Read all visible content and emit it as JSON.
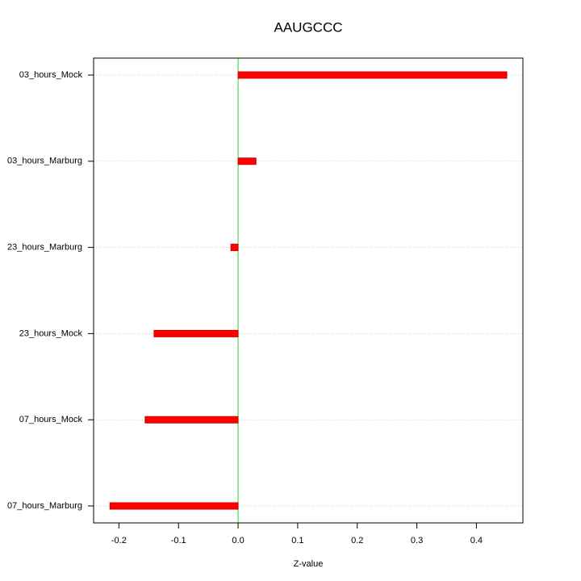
{
  "chart_data": {
    "type": "bar",
    "orientation": "horizontal",
    "title": "AAUGCCC",
    "x_label": "Z-value",
    "categories": [
      "03_hours_Mock",
      "03_hours_Marburg",
      "23_hours_Marburg",
      "23_hours_Mock",
      "07_hours_Mock",
      "07_hours_Marburg"
    ],
    "values": [
      0.451,
      0.03,
      -0.012,
      -0.141,
      -0.156,
      -0.215
    ],
    "color": "#ff0000",
    "xlim": [
      -0.2425,
      0.478
    ],
    "xticks": [
      -0.2,
      -0.1,
      {
        "value": 0,
        "label": "0.0"
      },
      0.1,
      0.2,
      0.3,
      0.4
    ],
    "grid": true
  }
}
